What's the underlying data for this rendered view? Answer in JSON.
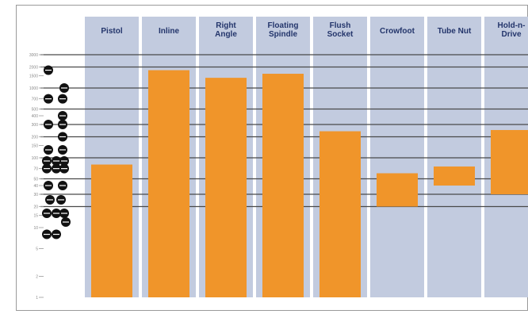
{
  "chart_data": {
    "type": "bar",
    "title": "",
    "xlabel": "",
    "ylabel": "",
    "categories": [
      "Pistol",
      "Inline",
      "Right Angle",
      "Floating Spindle",
      "Flush Socket",
      "Crowfoot",
      "Tube Nut",
      "Hold-n-Drive"
    ],
    "category_lines": [
      [
        "Pistol"
      ],
      [
        "Inline"
      ],
      [
        "Right",
        "Angle"
      ],
      [
        "Floating",
        "Spindle"
      ],
      [
        "Flush",
        "Socket"
      ],
      [
        "Crowfoot"
      ],
      [
        "Tube Nut"
      ],
      [
        "Hold-n-",
        "Drive"
      ]
    ],
    "series": [
      {
        "low": [
          1,
          1,
          1,
          1,
          1,
          20,
          40,
          30
        ],
        "high": [
          80,
          1800,
          1400,
          1600,
          240,
          60,
          75,
          250
        ]
      }
    ],
    "yscale": "log",
    "ylim": [
      1,
      3000
    ],
    "yticks": [
      1,
      2,
      5,
      10,
      15,
      20,
      30,
      40,
      50,
      70,
      100,
      150,
      200,
      300,
      400,
      500,
      700,
      1000,
      1500,
      2000,
      3000
    ],
    "bar_color": "#f0952a",
    "column_color": "#c2cbdf",
    "grid": true
  }
}
